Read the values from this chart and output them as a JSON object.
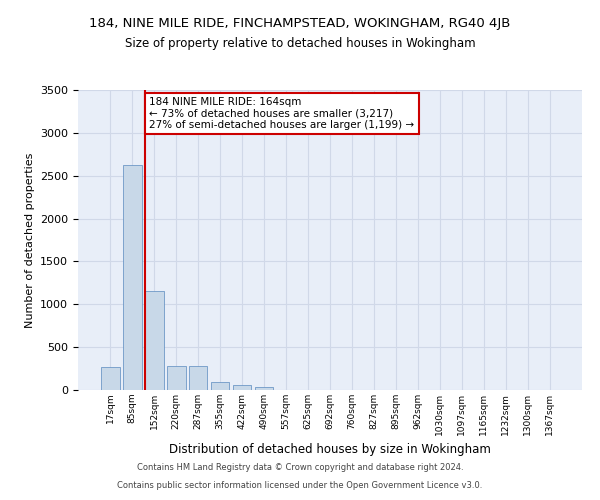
{
  "title_line1": "184, NINE MILE RIDE, FINCHAMPSTEAD, WOKINGHAM, RG40 4JB",
  "title_line2": "Size of property relative to detached houses in Wokingham",
  "xlabel": "Distribution of detached houses by size in Wokingham",
  "ylabel": "Number of detached properties",
  "categories": [
    "17sqm",
    "85sqm",
    "152sqm",
    "220sqm",
    "287sqm",
    "355sqm",
    "422sqm",
    "490sqm",
    "557sqm",
    "625sqm",
    "692sqm",
    "760sqm",
    "827sqm",
    "895sqm",
    "962sqm",
    "1030sqm",
    "1097sqm",
    "1165sqm",
    "1232sqm",
    "1300sqm",
    "1367sqm"
  ],
  "values": [
    270,
    2630,
    1150,
    280,
    275,
    90,
    60,
    35,
    0,
    0,
    0,
    0,
    0,
    0,
    0,
    0,
    0,
    0,
    0,
    0,
    0
  ],
  "bar_color": "#c8d8e8",
  "bar_edge_color": "#5a8abf",
  "annotation_text": "184 NINE MILE RIDE: 164sqm\n← 73% of detached houses are smaller (3,217)\n27% of semi-detached houses are larger (1,199) →",
  "annotation_box_color": "#ffffff",
  "annotation_box_edge_color": "#cc0000",
  "property_line_color": "#cc0000",
  "ylim": [
    0,
    3500
  ],
  "yticks": [
    0,
    500,
    1000,
    1500,
    2000,
    2500,
    3000,
    3500
  ],
  "grid_color": "#d0d8e8",
  "bg_color": "#e8eef8",
  "footer_line1": "Contains HM Land Registry data © Crown copyright and database right 2024.",
  "footer_line2": "Contains public sector information licensed under the Open Government Licence v3.0."
}
